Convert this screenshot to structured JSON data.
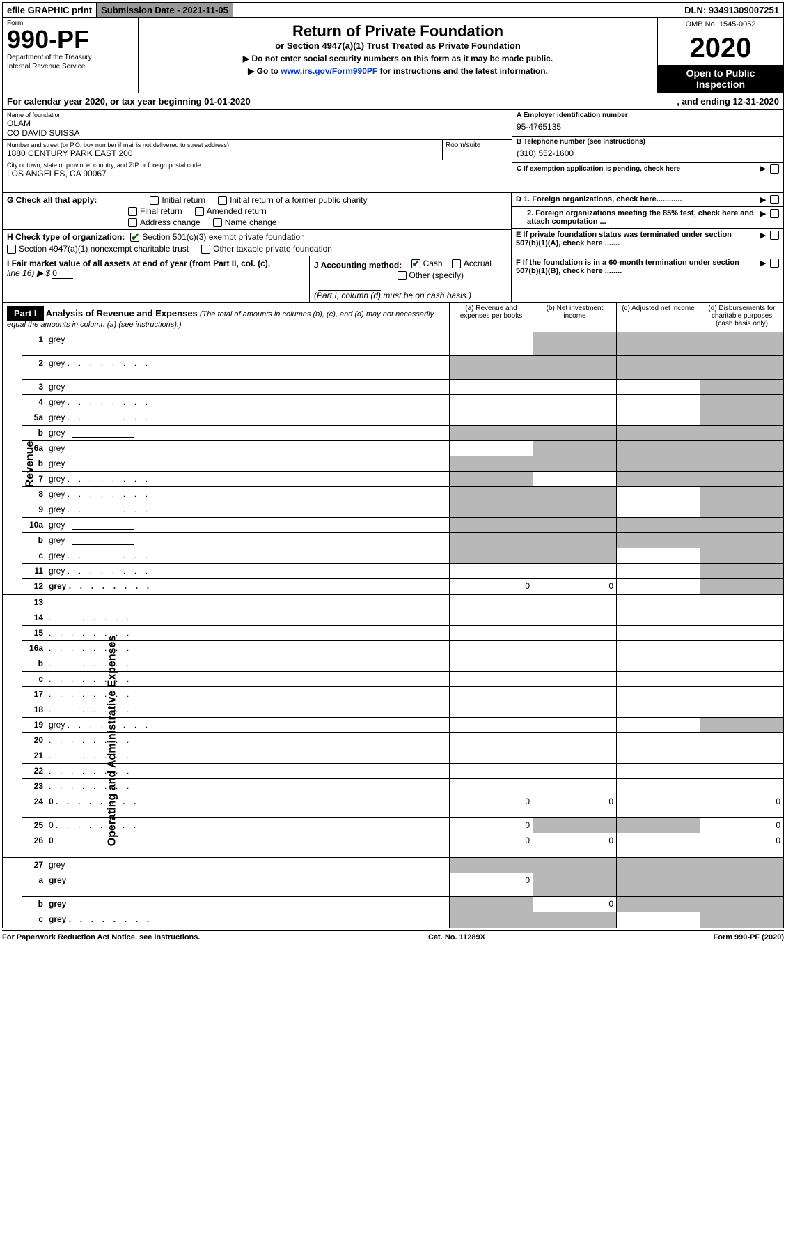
{
  "top_bar": {
    "efile": "efile GRAPHIC print",
    "submission": "Submission Date - 2021-11-05",
    "dln": "DLN: 93491309007251"
  },
  "header": {
    "form_label": "Form",
    "form_number": "990-PF",
    "dept1": "Department of the Treasury",
    "dept2": "Internal Revenue Service",
    "title": "Return of Private Foundation",
    "subtitle": "or Section 4947(a)(1) Trust Treated as Private Foundation",
    "note1": "▶ Do not enter social security numbers on this form as it may be made public.",
    "note2_pre": "▶ Go to ",
    "note2_link": "www.irs.gov/Form990PF",
    "note2_post": " for instructions and the latest information.",
    "omb": "OMB No. 1545-0052",
    "year": "2020",
    "open_pub1": "Open to Public",
    "open_pub2": "Inspection"
  },
  "cal_year": {
    "left": "For calendar year 2020, or tax year beginning 01-01-2020",
    "right": ", and ending 12-31-2020"
  },
  "info": {
    "name_label": "Name of foundation",
    "name1": "OLAM",
    "name2": "CO DAVID SUISSA",
    "addr_label": "Number and street (or P.O. box number if mail is not delivered to street address)",
    "addr": "1880 CENTURY PARK EAST 200",
    "room_label": "Room/suite",
    "city_label": "City or town, state or province, country, and ZIP or foreign postal code",
    "city": "LOS ANGELES, CA  90067",
    "ein_label": "A Employer identification number",
    "ein": "95-4765135",
    "phone_label": "B Telephone number (see instructions)",
    "phone": "(310) 552-1600",
    "pending_label": "C If exemption application is pending, check here"
  },
  "checks": {
    "g_label": "G Check all that apply:",
    "initial": "Initial return",
    "initial_former": "Initial return of a former public charity",
    "final": "Final return",
    "amended": "Amended return",
    "address": "Address change",
    "name_change": "Name change",
    "h_label": "H Check type of organization:",
    "h_501c3": "Section 501(c)(3) exempt private foundation",
    "h_4947": "Section 4947(a)(1) nonexempt charitable trust",
    "h_other": "Other taxable private foundation",
    "d1": "D 1. Foreign organizations, check here............",
    "d2": "2. Foreign organizations meeting the 85% test, check here and attach computation ...",
    "e": "E  If private foundation status was terminated under section 507(b)(1)(A), check here .......",
    "i_label": "I Fair market value of all assets at end of year (from Part II, col. (c),",
    "i_line16": "line 16) ▶ $",
    "i_val": "0",
    "j_label": "J Accounting method:",
    "j_cash": "Cash",
    "j_accrual": "Accrual",
    "j_other": "Other (specify)",
    "j_note": "(Part I, column (d) must be on cash basis.)",
    "f": "F  If the foundation is in a 60-month termination under section 507(b)(1)(B), check here ........"
  },
  "part1": {
    "label": "Part I",
    "title": "Analysis of Revenue and Expenses",
    "sub": " (The total of amounts in columns (b), (c), and (d) may not necessarily equal the amounts in column (a) (see instructions).)",
    "col_a": "(a)   Revenue and expenses per books",
    "col_b": "(b)   Net investment income",
    "col_c": "(c)   Adjusted net income",
    "col_d": "(d)   Disbursements for charitable purposes (cash basis only)"
  },
  "side_labels": {
    "revenue": "Revenue",
    "expenses": "Operating and Administrative Expenses"
  },
  "rows": [
    {
      "n": "1",
      "d": "grey",
      "a": "",
      "b": "grey",
      "c": "grey",
      "tall": true
    },
    {
      "n": "2",
      "d": "grey",
      "a": "grey",
      "b": "grey",
      "c": "grey",
      "tall": true,
      "dots": true,
      "bold": false
    },
    {
      "n": "3",
      "d": "grey",
      "a": "",
      "b": "",
      "c": ""
    },
    {
      "n": "4",
      "d": "grey",
      "a": "",
      "b": "",
      "c": "",
      "dots": true
    },
    {
      "n": "5a",
      "d": "grey",
      "a": "",
      "b": "",
      "c": "",
      "dots": true
    },
    {
      "n": "b",
      "d": "grey",
      "a": "grey",
      "b": "grey",
      "c": "grey",
      "sub": true
    },
    {
      "n": "6a",
      "d": "grey",
      "a": "",
      "b": "grey",
      "c": "grey"
    },
    {
      "n": "b",
      "d": "grey",
      "a": "grey",
      "b": "grey",
      "c": "grey",
      "sub": true
    },
    {
      "n": "7",
      "d": "grey",
      "a": "grey",
      "b": "",
      "c": "grey",
      "dots": true
    },
    {
      "n": "8",
      "d": "grey",
      "a": "grey",
      "b": "grey",
      "c": "",
      "dots": true
    },
    {
      "n": "9",
      "d": "grey",
      "a": "grey",
      "b": "grey",
      "c": "",
      "dots": true
    },
    {
      "n": "10a",
      "d": "grey",
      "a": "grey",
      "b": "grey",
      "c": "grey",
      "sub": true
    },
    {
      "n": "b",
      "d": "grey",
      "a": "grey",
      "b": "grey",
      "c": "grey",
      "sub": true,
      "dots": true
    },
    {
      "n": "c",
      "d": "grey",
      "a": "grey",
      "b": "grey",
      "c": "",
      "dots": true
    },
    {
      "n": "11",
      "d": "grey",
      "a": "",
      "b": "",
      "c": "",
      "dots": true
    },
    {
      "n": "12",
      "d": "grey",
      "a": "0",
      "b": "0",
      "c": "",
      "dots": true,
      "bold": true
    }
  ],
  "exp_rows": [
    {
      "n": "13",
      "d": "",
      "a": "",
      "b": "",
      "c": ""
    },
    {
      "n": "14",
      "d": "",
      "a": "",
      "b": "",
      "c": "",
      "dots": true
    },
    {
      "n": "15",
      "d": "",
      "a": "",
      "b": "",
      "c": "",
      "dots": true
    },
    {
      "n": "16a",
      "d": "",
      "a": "",
      "b": "",
      "c": "",
      "dots": true
    },
    {
      "n": "b",
      "d": "",
      "a": "",
      "b": "",
      "c": "",
      "dots": true
    },
    {
      "n": "c",
      "d": "",
      "a": "",
      "b": "",
      "c": "",
      "dots": true
    },
    {
      "n": "17",
      "d": "",
      "a": "",
      "b": "",
      "c": "",
      "dots": true
    },
    {
      "n": "18",
      "d": "",
      "a": "",
      "b": "",
      "c": "",
      "dots": true
    },
    {
      "n": "19",
      "d": "grey",
      "a": "",
      "b": "",
      "c": "",
      "dots": true
    },
    {
      "n": "20",
      "d": "",
      "a": "",
      "b": "",
      "c": "",
      "dots": true
    },
    {
      "n": "21",
      "d": "",
      "a": "",
      "b": "",
      "c": "",
      "dots": true
    },
    {
      "n": "22",
      "d": "",
      "a": "",
      "b": "",
      "c": "",
      "dots": true
    },
    {
      "n": "23",
      "d": "",
      "a": "",
      "b": "",
      "c": "",
      "dots": true
    },
    {
      "n": "24",
      "d": "0",
      "a": "0",
      "b": "0",
      "c": "",
      "bold": true,
      "dots": true,
      "tall": true
    },
    {
      "n": "25",
      "d": "0",
      "a": "0",
      "b": "grey",
      "c": "grey",
      "dots": true
    },
    {
      "n": "26",
      "d": "0",
      "a": "0",
      "b": "0",
      "c": "",
      "bold": true,
      "tall": true
    }
  ],
  "final_rows": [
    {
      "n": "27",
      "d": "grey",
      "a": "grey",
      "b": "grey",
      "c": "grey"
    },
    {
      "n": "a",
      "d": "grey",
      "a": "0",
      "b": "grey",
      "c": "grey",
      "bold": true,
      "tall": true
    },
    {
      "n": "b",
      "d": "grey",
      "a": "grey",
      "b": "0",
      "c": "grey",
      "bold": true
    },
    {
      "n": "c",
      "d": "grey",
      "a": "grey",
      "b": "grey",
      "c": "",
      "bold": true,
      "dots": true
    }
  ],
  "footer": {
    "left": "For Paperwork Reduction Act Notice, see instructions.",
    "mid": "Cat. No. 11289X",
    "right": "Form 990-PF (2020)"
  },
  "colors": {
    "grey_fill": "#b8b8b8",
    "black": "#000000",
    "link": "#0033cc",
    "check_green": "#0a5a0a",
    "top_grey": "#9a9a9a"
  }
}
